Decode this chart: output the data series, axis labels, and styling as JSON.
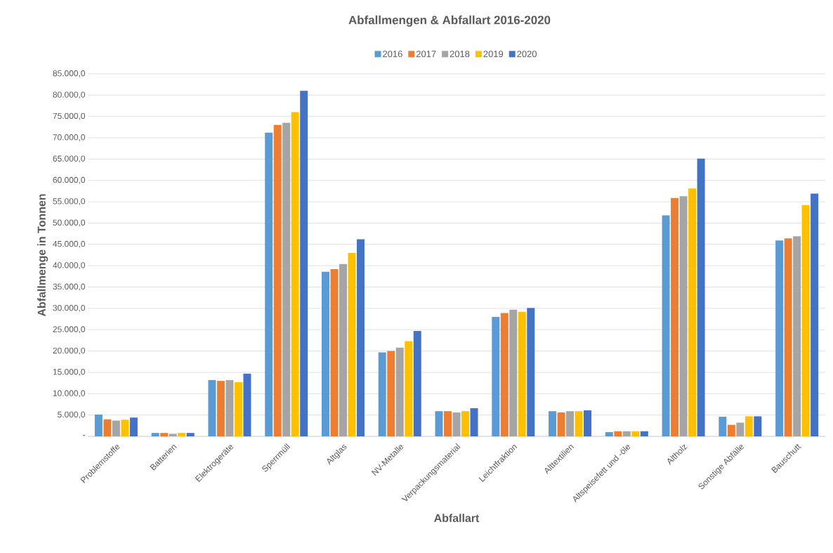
{
  "chart_data": {
    "type": "bar",
    "title": "Abfallmengen & Abfallart 2016-2020",
    "xlabel": "Abfallart",
    "ylabel": "Abfallmenge in Tonnen",
    "categories": [
      "Problemstoffe",
      "Batterien",
      "Elektrogeräte",
      "Sperrmüll",
      "Altglas",
      "NV-Metalle",
      "Verpackungsmaterial",
      "Leichtfraktion",
      "Alttextilien",
      "Altspeisefett und -öle",
      "Altholz",
      "Sonstige Abfälle",
      "Bauschutt"
    ],
    "series": [
      {
        "name": "2016",
        "color": "#5b9bd5",
        "values": [
          5100,
          800,
          13200,
          71200,
          38600,
          19700,
          5900,
          28000,
          5900,
          1000,
          51800,
          4600,
          45900
        ]
      },
      {
        "name": "2017",
        "color": "#ed7d31",
        "values": [
          4000,
          800,
          13000,
          73000,
          39200,
          20000,
          5900,
          28900,
          5600,
          1200,
          55900,
          2700,
          46400
        ]
      },
      {
        "name": "2018",
        "color": "#a5a5a5",
        "values": [
          3700,
          600,
          13200,
          73500,
          40400,
          20800,
          5600,
          29700,
          5900,
          1200,
          56300,
          3200,
          46900
        ]
      },
      {
        "name": "2019",
        "color": "#ffc000",
        "values": [
          3900,
          800,
          12700,
          76000,
          43000,
          22300,
          5900,
          29200,
          5900,
          1200,
          58100,
          4700,
          54200
        ]
      },
      {
        "name": "2020",
        "color": "#4472c4",
        "values": [
          4400,
          800,
          14700,
          81000,
          46200,
          24700,
          6600,
          30100,
          6100,
          1200,
          65100,
          4700,
          56900
        ]
      }
    ],
    "ylim": [
      0,
      85000
    ],
    "yticks": [
      {
        "value": 0,
        "label": "-"
      },
      {
        "value": 5000,
        "label": "5.000,0"
      },
      {
        "value": 10000,
        "label": "10.000,0"
      },
      {
        "value": 15000,
        "label": "15.000,0"
      },
      {
        "value": 20000,
        "label": "20.000,0"
      },
      {
        "value": 25000,
        "label": "25.000,0"
      },
      {
        "value": 30000,
        "label": "30.000,0"
      },
      {
        "value": 35000,
        "label": "35.000,0"
      },
      {
        "value": 40000,
        "label": "40.000,0"
      },
      {
        "value": 45000,
        "label": "45.000,0"
      },
      {
        "value": 50000,
        "label": "50.000,0"
      },
      {
        "value": 55000,
        "label": "55.000,0"
      },
      {
        "value": 60000,
        "label": "60.000,0"
      },
      {
        "value": 65000,
        "label": "65.000,0"
      },
      {
        "value": 70000,
        "label": "70.000,0"
      },
      {
        "value": 75000,
        "label": "75.000,0"
      },
      {
        "value": 80000,
        "label": "80.000,0"
      },
      {
        "value": 85000,
        "label": "85.000,0"
      }
    ],
    "grid": "y",
    "legend": "top"
  }
}
